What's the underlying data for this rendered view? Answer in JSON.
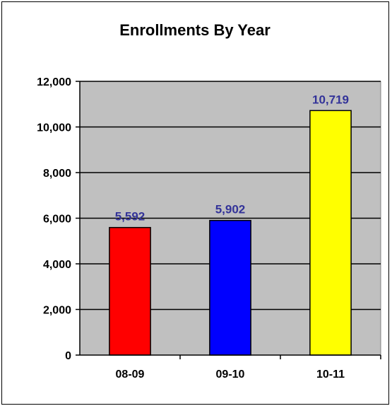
{
  "chart_data": {
    "type": "bar",
    "title": "Enrollments By Year",
    "xlabel": "",
    "ylabel": "",
    "categories": [
      "08-09",
      "09-10",
      "10-11"
    ],
    "values": [
      5592,
      5902,
      10719
    ],
    "value_labels": [
      "5,592",
      "5,902",
      "10,719"
    ],
    "bar_colors": [
      "#ff0000",
      "#0000ff",
      "#ffff00"
    ],
    "ylim": [
      0,
      12000
    ],
    "yticks": [
      0,
      2000,
      4000,
      6000,
      8000,
      10000,
      12000
    ],
    "ytick_labels": [
      "0",
      "2,000",
      "4,000",
      "6,000",
      "8,000",
      "10,000",
      "12,000"
    ],
    "grid": true,
    "legend": "none",
    "plot_background": "#c0c0c0",
    "data_label_color": "#333399"
  }
}
